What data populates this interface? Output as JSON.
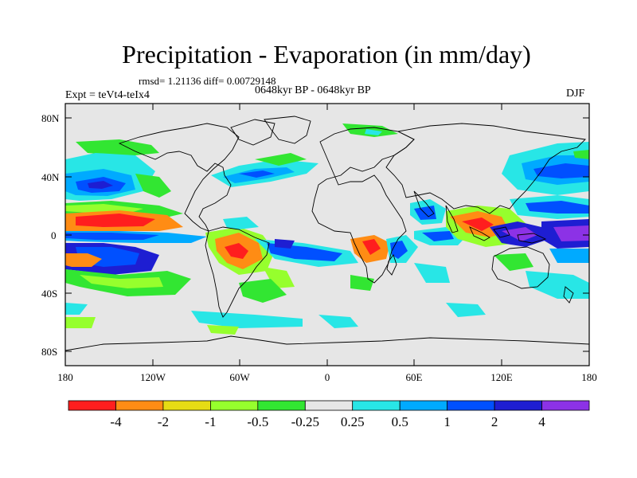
{
  "title": "Precipitation - Evaporation (in mm/day)",
  "stats": "rmsd= 1.21136 diff= 0.00729148",
  "experiment": "Expt = teVt4-teIx4",
  "period": "0648kyr BP - 0648kyr BP",
  "season": "DJF",
  "lat_ticks": [
    "80N",
    "40N",
    "0",
    "40S",
    "80S"
  ],
  "lon_ticks": [
    "180",
    "120W",
    "60W",
    "0",
    "60E",
    "120E",
    "180"
  ],
  "colorbar": {
    "labels": [
      "-4",
      "-2",
      "-1",
      "-0.5",
      "-0.25",
      "0.25",
      "0.5",
      "1",
      "2",
      "4"
    ],
    "colors": [
      "#ff1e1e",
      "#ff8c14",
      "#e6dc14",
      "#96ff2d",
      "#32e632",
      "#e6e6e6",
      "#28e6e6",
      "#00aaff",
      "#0050ff",
      "#1e1ed2",
      "#8c32e6"
    ]
  }
}
